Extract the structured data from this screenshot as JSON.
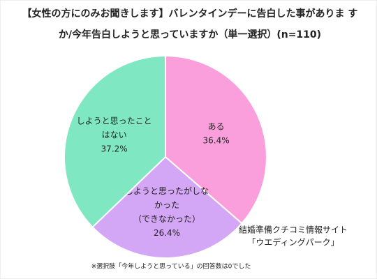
{
  "chart_data": {
    "type": "pie",
    "title": [
      "【女性の方にのみお聞きします】バレンタインデーに告白した事がありま す",
      "か/今年告白しようと思っていますか（単一選択）(n=110)"
    ],
    "categories": [
      [
        "ある"
      ],
      [
        "しようと思ったがしな",
        "かった",
        "（できなかった）"
      ],
      [
        "しようと思ったこと",
        "はない"
      ]
    ],
    "values": [
      36.4,
      26.4,
      37.2
    ],
    "value_labels": [
      "36.4%",
      "26.4%",
      "37.2%"
    ],
    "colors": [
      "#fb9fdc",
      "#d4a6f6",
      "#7fe8c2"
    ],
    "annotations": [
      "結婚準備クチコミ情報サイト",
      "「ウエディングパーク」"
    ],
    "note": "※選択肢「今年しようと思っている」の回答数は0でした"
  }
}
